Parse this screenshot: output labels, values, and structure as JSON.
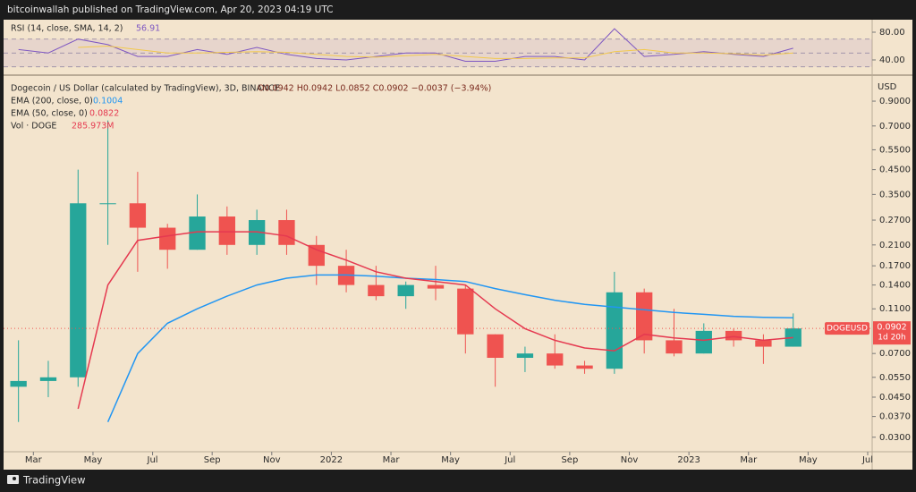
{
  "header": {
    "publisher": "bitcoinwallah published on TradingView.com, Apr 20, 2023 04:19 UTC"
  },
  "footer": {
    "brand": "TradingView"
  },
  "chart_data": [
    {
      "type": "line",
      "title": "RSI (14, close, SMA, 14, 2)",
      "value_label": "56.91",
      "x": [
        "2021-02",
        "2021-03",
        "2021-04",
        "2021-05",
        "2021-06",
        "2021-07",
        "2021-08",
        "2021-09",
        "2021-10",
        "2021-11",
        "2021-12",
        "2022-01",
        "2022-02",
        "2022-03",
        "2022-04",
        "2022-05",
        "2022-06",
        "2022-07",
        "2022-08",
        "2022-09",
        "2022-10",
        "2022-11",
        "2022-12",
        "2023-01",
        "2023-02",
        "2023-03",
        "2023-04"
      ],
      "series": [
        {
          "color": "#7e57c2",
          "values": [
            55,
            50,
            70,
            62,
            45,
            45,
            55,
            48,
            58,
            48,
            42,
            40,
            45,
            50,
            50,
            38,
            38,
            45,
            45,
            40,
            85,
            45,
            48,
            52,
            48,
            45,
            56.91
          ]
        },
        {
          "color": "#f2c94c",
          "values": [
            null,
            null,
            58,
            60,
            55,
            50,
            50,
            51,
            52,
            51,
            48,
            45,
            44,
            46,
            48,
            45,
            42,
            42,
            43,
            43,
            52,
            55,
            50,
            50,
            49,
            47,
            50
          ]
        }
      ],
      "bands": [
        70,
        50,
        30
      ],
      "xlim": [
        "2021-02",
        "2023-07"
      ],
      "ylim": [
        23.2,
        94.2
      ],
      "yticks": [
        {
          "value": 80,
          "label": "80.00"
        },
        {
          "value": 40,
          "label": "40.00"
        }
      ]
    },
    {
      "type": "candlestick",
      "legend": {
        "symbol": "Dogecoin / US Dollar (calculated by TradingView), 3D, BINANCE",
        "ohlc": "O0.0942 H0.0942 L0.0852 C0.0902 −0.0037 (−3.94%)"
      },
      "volume": {
        "name": "Vol · DOGE",
        "legend_value": "285.973M"
      },
      "y_unit": "USD",
      "ticker": "DOGEUSD",
      "price_tag": "0.0902",
      "countdown": "1d 20h",
      "log_scale": true,
      "up_color": "#26a69a",
      "down_color": "#ef5350",
      "x": [
        "2021-02",
        "2021-03",
        "2021-04",
        "2021-05",
        "2021-06",
        "2021-07",
        "2021-08",
        "2021-09",
        "2021-10",
        "2021-11",
        "2021-12",
        "2022-01",
        "2022-02",
        "2022-03",
        "2022-04",
        "2022-05",
        "2022-06",
        "2022-07",
        "2022-08",
        "2022-09",
        "2022-10",
        "2022-11",
        "2022-12",
        "2023-01",
        "2023-02",
        "2023-03",
        "2023-04"
      ],
      "open": [
        0.05,
        0.053,
        0.055,
        0.32,
        0.32,
        0.25,
        0.2,
        0.28,
        0.21,
        0.27,
        0.21,
        0.17,
        0.14,
        0.125,
        0.14,
        0.135,
        0.085,
        0.067,
        0.07,
        0.062,
        0.06,
        0.13,
        0.08,
        0.07,
        0.088,
        0.08,
        0.075
      ],
      "high": [
        0.08,
        0.065,
        0.45,
        0.74,
        0.44,
        0.26,
        0.35,
        0.31,
        0.3,
        0.3,
        0.23,
        0.2,
        0.17,
        0.145,
        0.17,
        0.14,
        0.085,
        0.075,
        0.085,
        0.065,
        0.16,
        0.135,
        0.11,
        0.095,
        0.09,
        0.085,
        0.105
      ],
      "low": [
        0.035,
        0.045,
        0.05,
        0.21,
        0.16,
        0.165,
        0.2,
        0.19,
        0.19,
        0.19,
        0.14,
        0.13,
        0.12,
        0.11,
        0.12,
        0.07,
        0.05,
        0.058,
        0.06,
        0.057,
        0.057,
        0.07,
        0.068,
        0.07,
        0.075,
        0.063,
        0.075
      ],
      "close": [
        0.053,
        0.055,
        0.32,
        0.32,
        0.25,
        0.2,
        0.28,
        0.21,
        0.27,
        0.21,
        0.17,
        0.14,
        0.125,
        0.14,
        0.135,
        0.085,
        0.067,
        0.07,
        0.062,
        0.06,
        0.13,
        0.08,
        0.07,
        0.088,
        0.08,
        0.075,
        0.0902
      ],
      "series": [
        {
          "name": "EMA (200, close, 0)",
          "legend_value": "0.1004",
          "color": "#2196f3",
          "values": [
            null,
            null,
            null,
            0.035,
            0.07,
            0.095,
            0.11,
            0.125,
            0.14,
            0.15,
            0.155,
            0.155,
            0.153,
            0.15,
            0.148,
            0.145,
            0.135,
            0.127,
            0.12,
            0.115,
            0.112,
            0.109,
            0.106,
            0.104,
            0.102,
            0.101,
            0.1004
          ]
        },
        {
          "name": "EMA (50, close, 0)",
          "legend_value": "0.0822",
          "color": "#e53950",
          "values": [
            null,
            null,
            0.04,
            0.14,
            0.22,
            0.23,
            0.24,
            0.24,
            0.24,
            0.23,
            0.2,
            0.18,
            0.16,
            0.15,
            0.145,
            0.14,
            0.11,
            0.09,
            0.08,
            0.074,
            0.072,
            0.085,
            0.082,
            0.08,
            0.083,
            0.08,
            0.0822
          ]
        }
      ],
      "xlim": [
        "2021-02",
        "2023-07"
      ],
      "ylim": [
        0.0259,
        1.129
      ],
      "xticks": [
        {
          "value": "2021-03",
          "label": "Mar"
        },
        {
          "value": "2021-05",
          "label": "May"
        },
        {
          "value": "2021-07",
          "label": "Jul"
        },
        {
          "value": "2021-09",
          "label": "Sep"
        },
        {
          "value": "2021-11",
          "label": "Nov"
        },
        {
          "value": "2022-01",
          "label": "2022"
        },
        {
          "value": "2022-03",
          "label": "Mar"
        },
        {
          "value": "2022-05",
          "label": "May"
        },
        {
          "value": "2022-07",
          "label": "Jul"
        },
        {
          "value": "2022-09",
          "label": "Sep"
        },
        {
          "value": "2022-11",
          "label": "Nov"
        },
        {
          "value": "2023-01",
          "label": "2023"
        },
        {
          "value": "2023-03",
          "label": "Mar"
        },
        {
          "value": "2023-05",
          "label": "May"
        },
        {
          "value": "2023-07",
          "label": "Jul"
        }
      ],
      "yticks": [
        {
          "value": 0.9,
          "label": "0.9000"
        },
        {
          "value": 0.7,
          "label": "0.7000"
        },
        {
          "value": 0.55,
          "label": "0.5500"
        },
        {
          "value": 0.45,
          "label": "0.4500"
        },
        {
          "value": 0.35,
          "label": "0.3500"
        },
        {
          "value": 0.27,
          "label": "0.2700"
        },
        {
          "value": 0.21,
          "label": "0.2100"
        },
        {
          "value": 0.17,
          "label": "0.1700"
        },
        {
          "value": 0.14,
          "label": "0.1400"
        },
        {
          "value": 0.11,
          "label": "0.1100"
        },
        {
          "value": 0.07,
          "label": "0.0700"
        },
        {
          "value": 0.055,
          "label": "0.0550"
        },
        {
          "value": 0.045,
          "label": "0.0450"
        },
        {
          "value": 0.037,
          "label": "0.0370"
        },
        {
          "value": 0.03,
          "label": "0.0300"
        }
      ]
    }
  ]
}
